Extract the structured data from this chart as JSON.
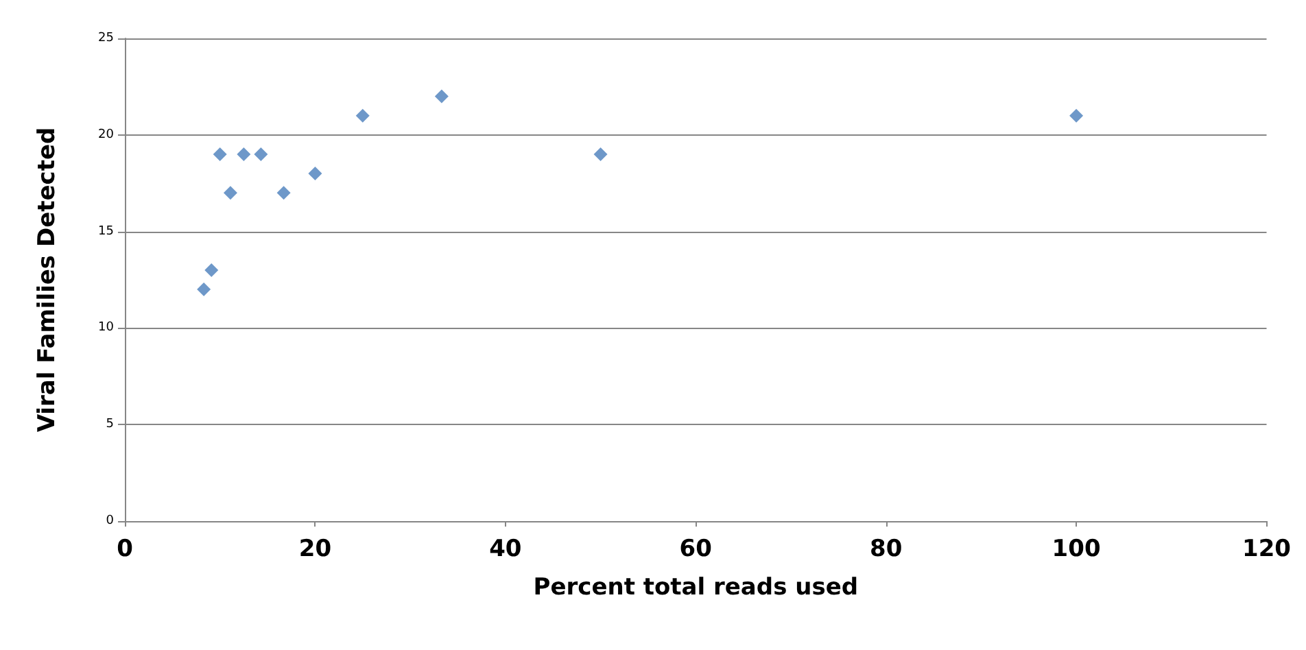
{
  "chart_data": {
    "type": "scatter",
    "xlabel": "Percent total reads used",
    "ylabel": "Viral Families Detected",
    "x": [
      8.3,
      9.1,
      10,
      11.1,
      12.5,
      14.3,
      16.7,
      20,
      25,
      33.3,
      50,
      100
    ],
    "series": [
      {
        "color": "#4a7ebb",
        "values": [
          12,
          13,
          19,
          17,
          19,
          19,
          17,
          18,
          21,
          22,
          19,
          21
        ]
      }
    ],
    "xlim": [
      0,
      120
    ],
    "xticks": [
      0,
      20,
      40,
      60,
      80,
      100,
      120
    ],
    "ylim": [
      0,
      25
    ],
    "yticks": [
      0,
      5,
      10,
      15,
      20,
      25
    ],
    "grid": "y",
    "marker": "diamond"
  }
}
